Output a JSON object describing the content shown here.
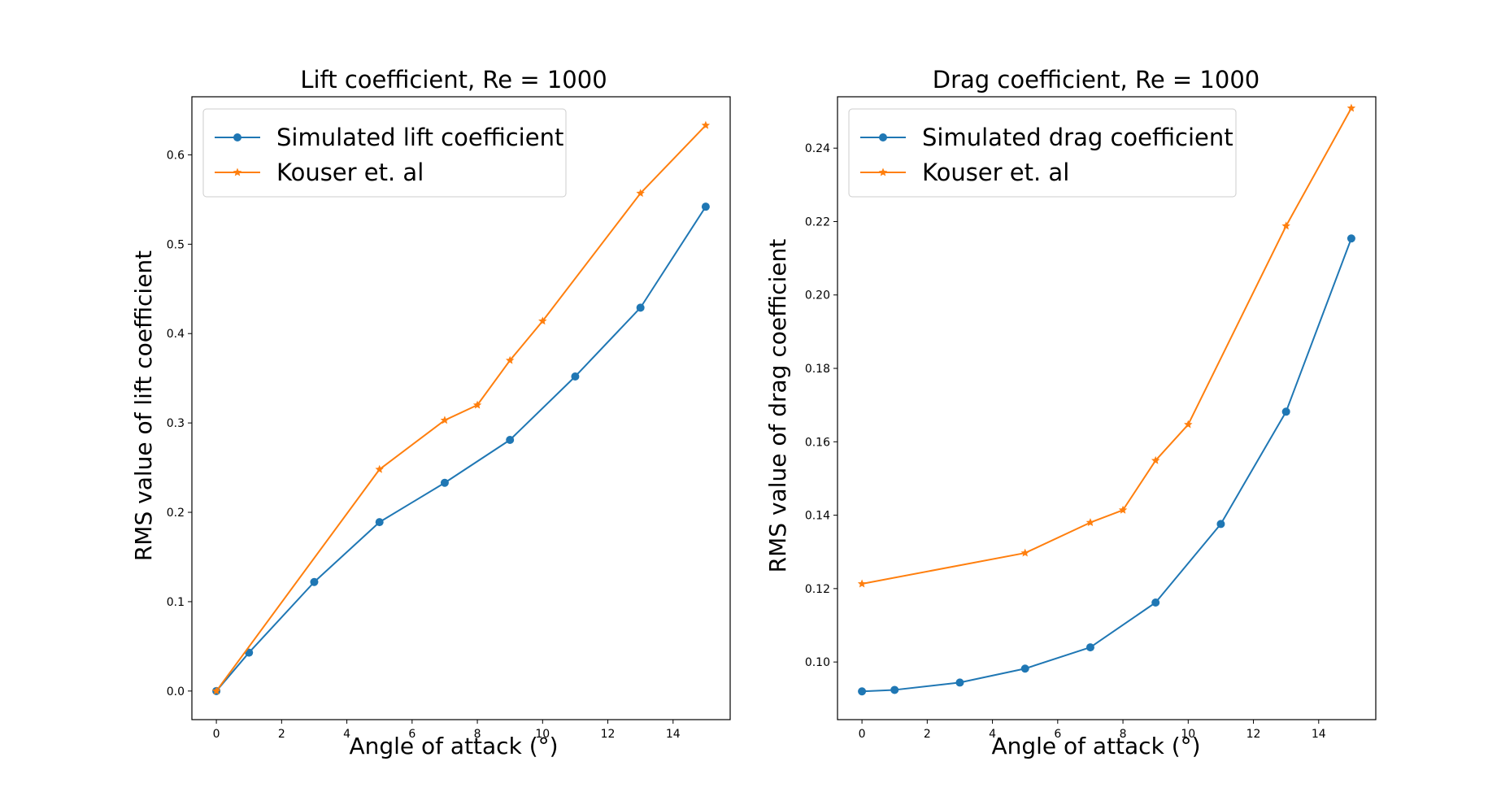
{
  "chart_data": [
    {
      "type": "line",
      "title": "Lift coefficient, Re = 1000",
      "xlabel": "Angle of attack (°)",
      "ylabel": "RMS value of lift coefficient",
      "xlim": [
        -0.75,
        15.75
      ],
      "ylim": [
        -0.032,
        0.665
      ],
      "xticks": [
        0,
        2,
        4,
        6,
        8,
        10,
        12,
        14
      ],
      "yticks": [
        0.0,
        0.1,
        0.2,
        0.3,
        0.4,
        0.5,
        0.6
      ],
      "ytick_decimals": 1,
      "grid": false,
      "legend_position": "top-left",
      "series": [
        {
          "name": "Simulated lift coefficient",
          "color": "#1f77b4",
          "marker": "circle",
          "x": [
            0,
            1,
            3,
            5,
            7,
            9,
            11,
            13,
            15
          ],
          "y": [
            0.0,
            0.043,
            0.122,
            0.189,
            0.233,
            0.281,
            0.352,
            0.429,
            0.542
          ]
        },
        {
          "name": "Kouser et. al",
          "color": "#ff7f0e",
          "marker": "star",
          "x": [
            0,
            5,
            7,
            8,
            9,
            10,
            13,
            15
          ],
          "y": [
            0.0,
            0.248,
            0.303,
            0.32,
            0.37,
            0.414,
            0.557,
            0.633
          ]
        }
      ]
    },
    {
      "type": "line",
      "title": "Drag coefficient, Re = 1000",
      "xlabel": "Angle of attack (°)",
      "ylabel": "RMS value of drag coefficient",
      "xlim": [
        -0.75,
        15.75
      ],
      "ylim": [
        0.0843,
        0.254
      ],
      "xticks": [
        0,
        2,
        4,
        6,
        8,
        10,
        12,
        14
      ],
      "yticks": [
        0.1,
        0.12,
        0.14,
        0.16,
        0.18,
        0.2,
        0.22,
        0.24
      ],
      "ytick_decimals": 2,
      "grid": false,
      "legend_position": "top-left",
      "series": [
        {
          "name": "Simulated drag coefficient",
          "color": "#1f77b4",
          "marker": "circle",
          "x": [
            0,
            1,
            3,
            5,
            7,
            9,
            11,
            13,
            15
          ],
          "y": [
            0.092,
            0.0924,
            0.0944,
            0.0982,
            0.104,
            0.1162,
            0.1376,
            0.1682,
            0.2154
          ]
        },
        {
          "name": "Kouser et. al",
          "color": "#ff7f0e",
          "marker": "star",
          "x": [
            0,
            5,
            7,
            8,
            9,
            10,
            13,
            15
          ],
          "y": [
            0.1213,
            0.1297,
            0.138,
            0.1414,
            0.1549,
            0.1647,
            0.2188,
            0.2509
          ]
        }
      ]
    }
  ]
}
